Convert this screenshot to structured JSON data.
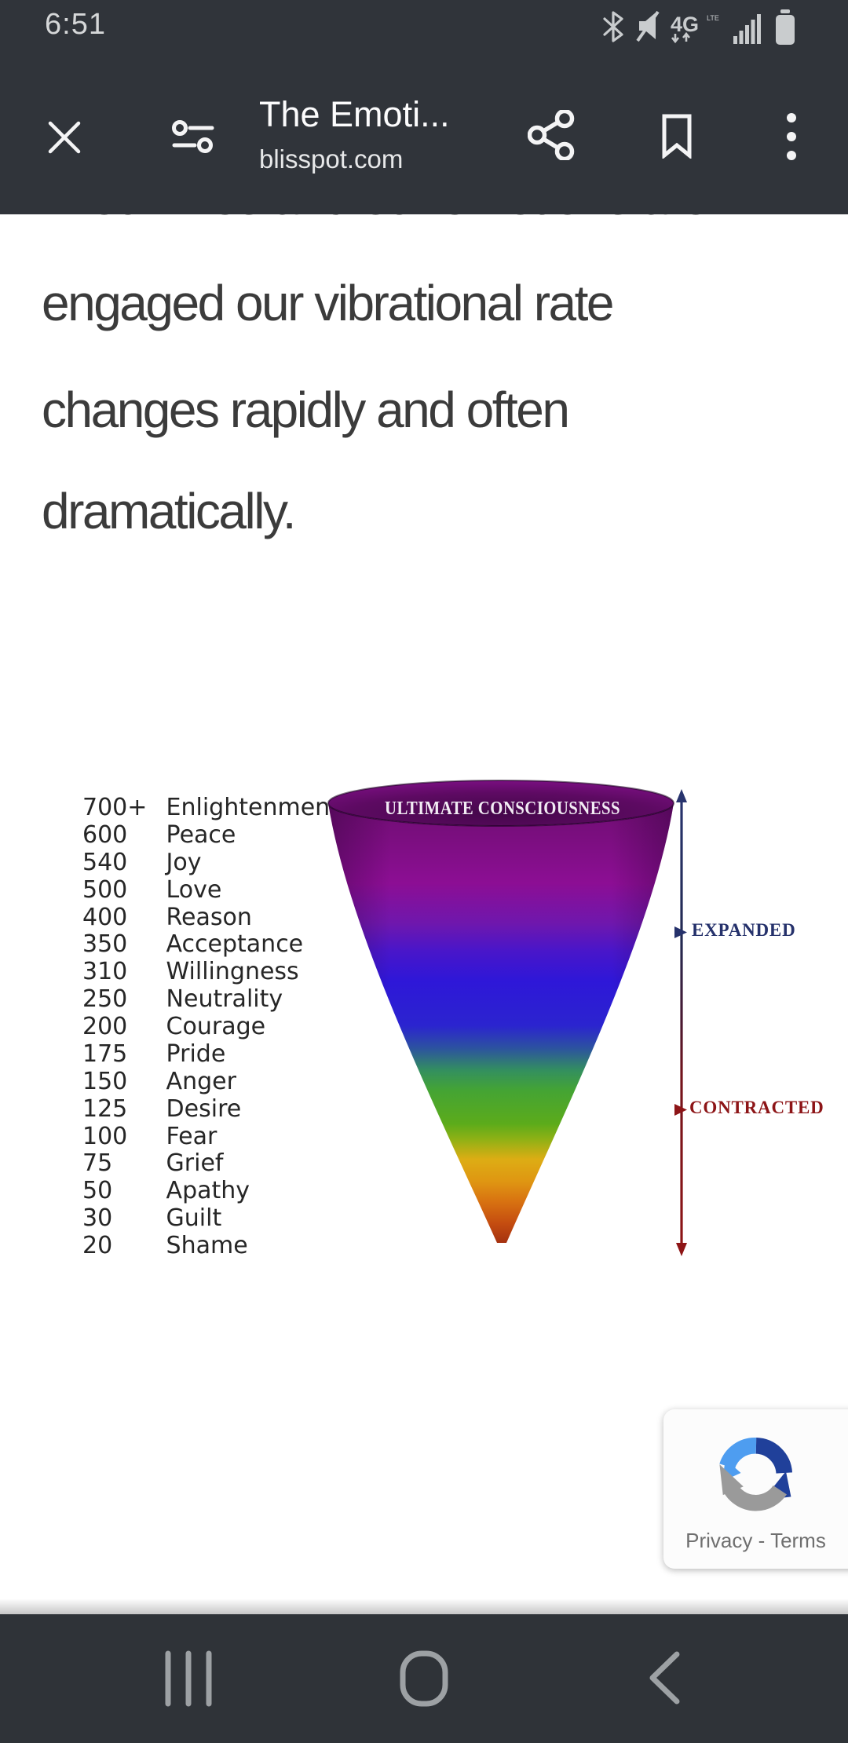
{
  "status_bar": {
    "time": "6:51",
    "network_label": "4G",
    "network_sub": "LTE",
    "icons": [
      "bluetooth-icon",
      "mute-icon",
      "4g-icon",
      "signal-icon",
      "battery-icon"
    ]
  },
  "app_bar": {
    "title": "The Emoti...",
    "url": "blisspot.com",
    "actions": [
      "close",
      "reader-tune",
      "share",
      "bookmark",
      "overflow-menu"
    ]
  },
  "article": {
    "clipped_line": "in our lives and our emotions are",
    "lines": [
      "engaged our vibrational rate",
      "changes rapidly and often",
      "dramatically."
    ]
  },
  "chart_data": {
    "type": "funnel",
    "title": "ULTIMATE CONSCIOUSNESS",
    "orientation": "inverted-cone, rainbow gradient top(purple)-to-tip(red)",
    "levels": [
      {
        "value": "700+",
        "label": "Enlightenment"
      },
      {
        "value": "600",
        "label": "Peace"
      },
      {
        "value": "540",
        "label": "Joy"
      },
      {
        "value": "500",
        "label": "Love"
      },
      {
        "value": "400",
        "label": "Reason"
      },
      {
        "value": "350",
        "label": "Acceptance"
      },
      {
        "value": "310",
        "label": "Willingness"
      },
      {
        "value": "250",
        "label": "Neutrality"
      },
      {
        "value": "200",
        "label": "Courage"
      },
      {
        "value": "175",
        "label": "Pride"
      },
      {
        "value": "150",
        "label": "Anger"
      },
      {
        "value": "125",
        "label": "Desire"
      },
      {
        "value": "100",
        "label": "Fear"
      },
      {
        "value": "75",
        "label": "Grief"
      },
      {
        "value": "50",
        "label": "Apathy"
      },
      {
        "value": "30",
        "label": "Guilt"
      },
      {
        "value": "20",
        "label": "Shame"
      }
    ],
    "annotations": {
      "expanded": "EXPANDED",
      "contracted": "CONTRACTED"
    },
    "colors": {
      "expanded_navy": "#25316b",
      "contracted_red": "#8d1517",
      "cone_top_purple": "#6f0d72",
      "cone_blue": "#2e17d8",
      "cone_green": "#5cab1b",
      "cone_yellow": "#ddad14",
      "cone_tip_red": "#9c2a10"
    }
  },
  "recaptcha": {
    "privacy": "Privacy",
    "separator": "-",
    "terms": "Terms",
    "colors": {
      "light_blue": "#4e9df0",
      "dark_blue": "#20409a",
      "gray": "#9a9a9a"
    }
  },
  "colors": {
    "bar_background": "#30343a",
    "nav_background": "#2f3338",
    "body_text": "#3b3b3b"
  }
}
